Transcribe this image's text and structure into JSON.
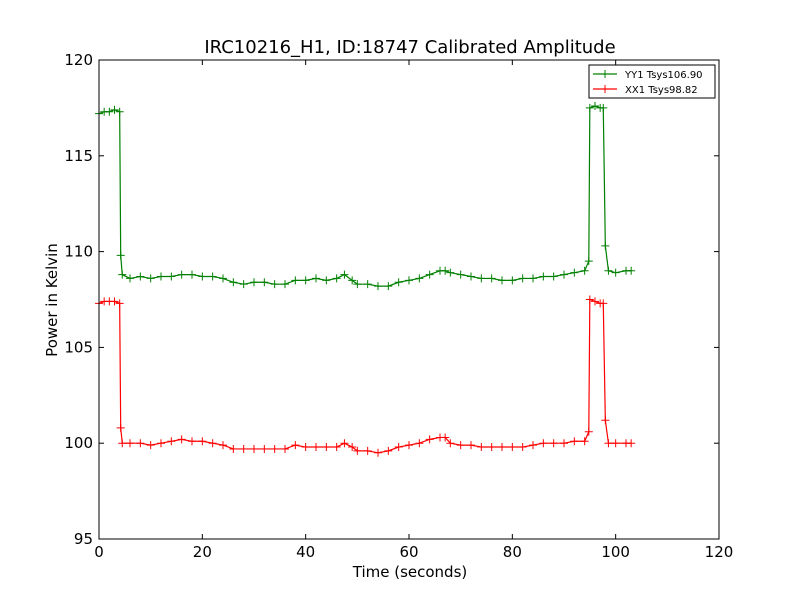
{
  "chart_data": {
    "type": "line",
    "title": "IRC10216_H1, ID:18747 Calibrated Amplitude",
    "xlabel": "Time (seconds)",
    "ylabel": "Power in Kelvin",
    "xlim": [
      0,
      120
    ],
    "ylim": [
      95,
      120
    ],
    "xticks": [
      0,
      20,
      40,
      60,
      80,
      100,
      120
    ],
    "yticks": [
      95,
      100,
      105,
      110,
      115,
      120
    ],
    "grid": false,
    "legend_position": "top-right",
    "marker": "+",
    "series": [
      {
        "name": "YY1 Tsys106.90",
        "color": "#008000",
        "x": [
          0,
          1,
          2,
          3,
          4,
          4.2,
          4.5,
          6,
          8,
          10,
          12,
          14,
          16,
          18,
          20,
          22,
          24,
          26,
          28,
          30,
          32,
          34,
          36,
          38,
          40,
          42,
          44,
          46,
          47.5,
          49,
          50,
          52,
          54,
          56,
          58,
          60,
          62,
          64,
          66,
          67,
          68,
          70,
          72,
          74,
          76,
          78,
          80,
          82,
          84,
          86,
          88,
          90,
          92,
          94,
          94.8,
          95,
          96,
          97,
          97.6,
          98,
          98.6,
          100,
          102,
          103
        ],
        "y": [
          117.2,
          117.3,
          117.3,
          117.4,
          117.3,
          109.8,
          108.8,
          108.6,
          108.7,
          108.6,
          108.7,
          108.7,
          108.8,
          108.8,
          108.7,
          108.7,
          108.6,
          108.4,
          108.3,
          108.4,
          108.4,
          108.3,
          108.3,
          108.5,
          108.5,
          108.6,
          108.5,
          108.6,
          108.8,
          108.5,
          108.3,
          108.3,
          108.2,
          108.2,
          108.4,
          108.5,
          108.6,
          108.8,
          109.0,
          109.0,
          108.9,
          108.8,
          108.7,
          108.6,
          108.6,
          108.5,
          108.5,
          108.6,
          108.6,
          108.7,
          108.7,
          108.8,
          108.9,
          109.0,
          109.5,
          117.5,
          117.6,
          117.5,
          117.5,
          110.3,
          109.0,
          108.9,
          109.0,
          109.0
        ]
      },
      {
        "name": "XX1 Tsys98.82",
        "color": "#ff0000",
        "x": [
          0,
          1,
          2,
          3,
          4,
          4.2,
          4.5,
          6,
          8,
          10,
          12,
          14,
          16,
          18,
          20,
          22,
          24,
          26,
          28,
          30,
          32,
          34,
          36,
          38,
          40,
          42,
          44,
          46,
          47.5,
          49,
          50,
          52,
          54,
          56,
          58,
          60,
          62,
          64,
          66,
          67,
          68,
          70,
          72,
          74,
          76,
          78,
          80,
          82,
          84,
          86,
          88,
          90,
          92,
          94,
          94.8,
          95,
          96,
          97,
          97.6,
          98,
          98.6,
          100,
          102,
          103
        ],
        "y": [
          107.3,
          107.4,
          107.4,
          107.4,
          107.3,
          100.8,
          100.0,
          100.0,
          100.0,
          99.9,
          100.0,
          100.1,
          100.2,
          100.1,
          100.1,
          100.0,
          99.9,
          99.7,
          99.7,
          99.7,
          99.7,
          99.7,
          99.7,
          99.9,
          99.8,
          99.8,
          99.8,
          99.8,
          100.0,
          99.8,
          99.6,
          99.6,
          99.5,
          99.6,
          99.8,
          99.9,
          100.0,
          100.2,
          100.3,
          100.3,
          100.0,
          99.9,
          99.9,
          99.8,
          99.8,
          99.8,
          99.8,
          99.8,
          99.9,
          100.0,
          100.0,
          100.0,
          100.1,
          100.1,
          100.6,
          107.5,
          107.4,
          107.3,
          107.3,
          101.2,
          100.0,
          100.0,
          100.0,
          100.0
        ]
      }
    ]
  }
}
